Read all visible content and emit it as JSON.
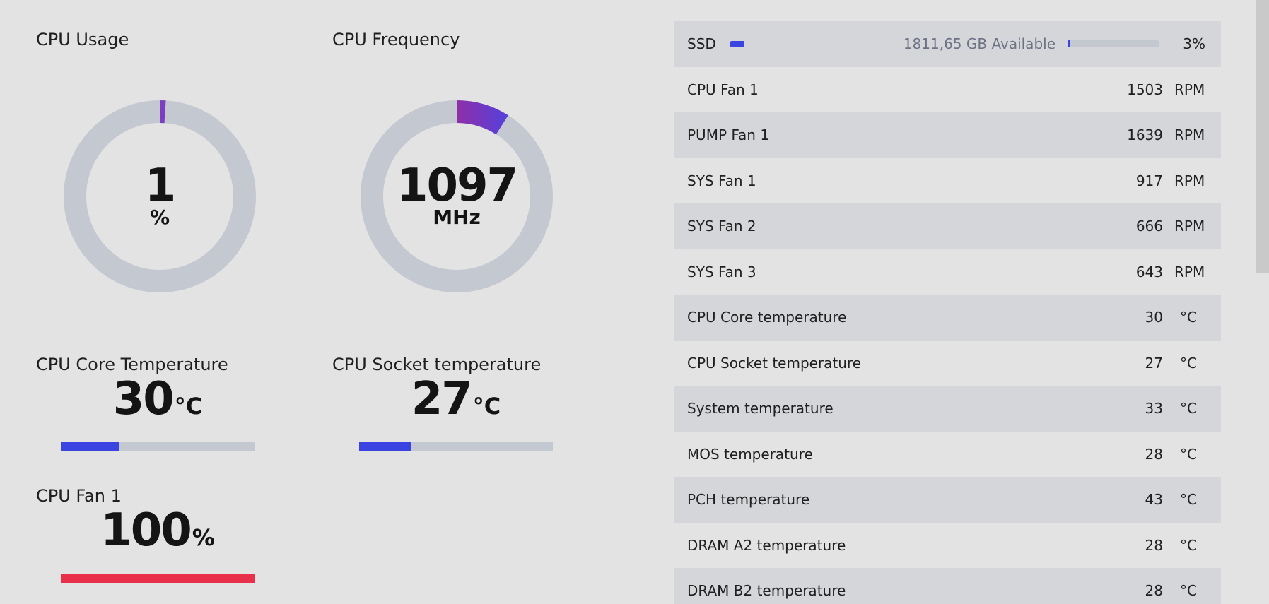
{
  "widgets": {
    "cpu_usage": {
      "title": "CPU Usage",
      "value": "1",
      "unit": "%",
      "fraction": 0.01,
      "color": "#7b3fbf"
    },
    "cpu_frequency": {
      "title": "CPU Frequency",
      "value": "1097",
      "unit": "MHz",
      "fraction": 0.09,
      "color_start": "#8f2fa8",
      "color_end": "#5b3fd6"
    },
    "cpu_core_temp": {
      "title": "CPU Core Temperature",
      "value": "30",
      "unit": "°C",
      "fraction": 0.3,
      "color": "#3a44e0"
    },
    "cpu_socket_temp": {
      "title": "CPU Socket temperature",
      "value": "27",
      "unit": "°C",
      "fraction": 0.27,
      "color": "#3a44e0"
    },
    "cpu_fan": {
      "title": "CPU Fan 1",
      "value": "100",
      "unit": "%",
      "fraction": 1.0,
      "color": "#e8304a"
    }
  },
  "ring_track_color": "#c4c8d0",
  "ssd": {
    "label": "SSD",
    "available": "1811,65 GB Available",
    "percent": "3%",
    "fraction": 0.03
  },
  "sensors": [
    {
      "label": "CPU Fan 1",
      "value": "1503",
      "unit": "RPM"
    },
    {
      "label": "PUMP Fan 1",
      "value": "1639",
      "unit": "RPM"
    },
    {
      "label": "SYS Fan 1",
      "value": "917",
      "unit": "RPM"
    },
    {
      "label": "SYS Fan 2",
      "value": "666",
      "unit": "RPM"
    },
    {
      "label": "SYS Fan 3",
      "value": "643",
      "unit": "RPM"
    },
    {
      "label": "CPU Core temperature",
      "value": "30",
      "unit": "°C"
    },
    {
      "label": "CPU Socket temperature",
      "value": "27",
      "unit": "°C"
    },
    {
      "label": "System temperature",
      "value": "33",
      "unit": "°C"
    },
    {
      "label": "MOS temperature",
      "value": "28",
      "unit": "°C"
    },
    {
      "label": "PCH temperature",
      "value": "43",
      "unit": "°C"
    },
    {
      "label": "DRAM A2 temperature",
      "value": "28",
      "unit": "°C"
    },
    {
      "label": "DRAM B2 temperature",
      "value": "28",
      "unit": "°C"
    }
  ]
}
